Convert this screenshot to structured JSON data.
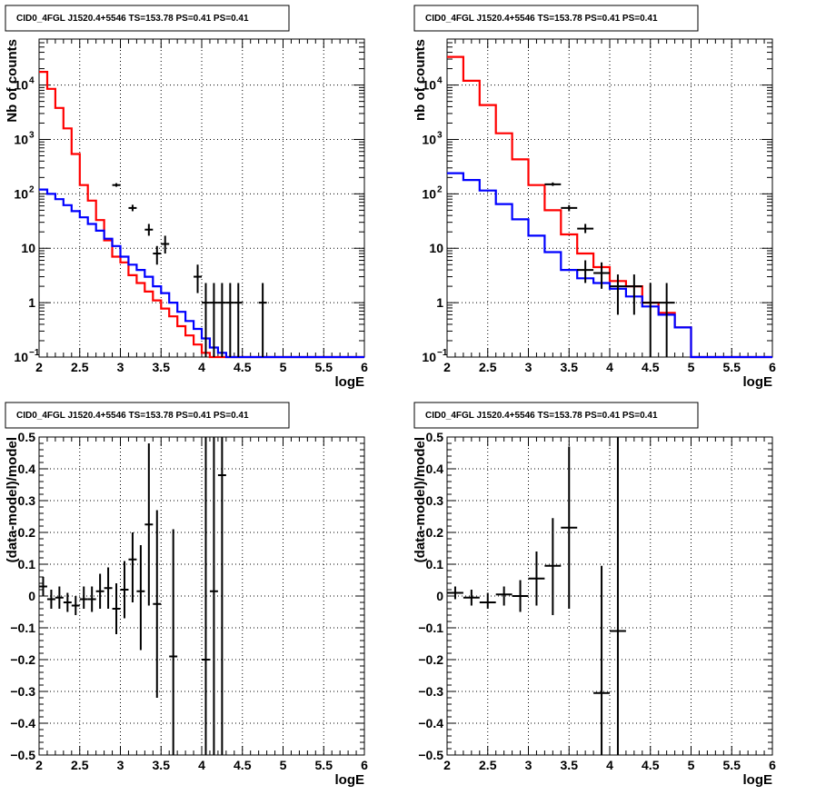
{
  "chart_data": [
    {
      "type": "step",
      "title": "CID0_4FGL J1520.4+5546 TS=153.78 PS=0.41 PS=0.41",
      "xlabel": "logE",
      "ylabel": "Nb of counts",
      "xlim": [
        2,
        6
      ],
      "ylim": [
        0.1,
        70000
      ],
      "yscale": "log",
      "grid": true,
      "x_ticks": [
        "2",
        "2.5",
        "3",
        "3.5",
        "4",
        "4.5",
        "5",
        "5.5",
        "6"
      ],
      "y_ticks": [
        {
          "v": 0.1,
          "label": "10",
          "sup": "−1"
        },
        {
          "v": 1,
          "label": "1",
          "sup": ""
        },
        {
          "v": 10,
          "label": "10",
          "sup": ""
        },
        {
          "v": 100,
          "label": "10",
          "sup": "2"
        },
        {
          "v": 1000,
          "label": "10",
          "sup": "3"
        },
        {
          "v": 10000,
          "label": "10",
          "sup": "4"
        }
      ],
      "bin_width": 0.1,
      "bin_start": 2.0,
      "series": [
        {
          "color": "#ff0000",
          "values": [
            17500,
            8500,
            3800,
            1600,
            540,
            145,
            75,
            33,
            14,
            7,
            5.5,
            3.2,
            2.3,
            1.6,
            1.1,
            0.78,
            0.56,
            0.37,
            0.25,
            0.17,
            0.12,
            0.1,
            0.1,
            0.1,
            0.1,
            0.1,
            0.1,
            0.1,
            0.1,
            0.1,
            0.1,
            0.1,
            0.1,
            0.1,
            0.1,
            0.1,
            0.1,
            0.1,
            0.1,
            0.1
          ]
        },
        {
          "color": "#0000ff",
          "values": [
            120,
            100,
            80,
            62,
            48,
            37,
            28,
            21,
            15,
            11,
            7,
            5,
            4,
            3,
            2,
            1.5,
            1.0,
            0.68,
            0.46,
            0.33,
            0.22,
            0.15,
            0.12,
            0.1,
            0.1,
            0.1,
            0.1,
            0.1,
            0.1,
            0.1,
            0.1,
            0.1,
            0.1,
            0.1,
            0.1,
            0.1,
            0.1,
            0.1,
            0.1,
            0.1
          ]
        }
      ],
      "points": [
        {
          "x": 2.95,
          "y": 145,
          "lo": 135,
          "hi": 157,
          "xerr": 0.05
        },
        {
          "x": 3.15,
          "y": 55,
          "lo": 48,
          "hi": 63,
          "xerr": 0.05
        },
        {
          "x": 3.35,
          "y": 22,
          "lo": 17,
          "hi": 28,
          "xerr": 0.05
        },
        {
          "x": 3.45,
          "y": 8,
          "lo": 5,
          "hi": 11,
          "xerr": 0.05
        },
        {
          "x": 3.55,
          "y": 12,
          "lo": 8,
          "hi": 17,
          "xerr": 0.05
        },
        {
          "x": 3.95,
          "y": 3,
          "lo": 1.5,
          "hi": 5,
          "xerr": 0.05
        },
        {
          "x": 4.05,
          "y": 1,
          "lo": 0.1,
          "hi": 2.3,
          "xerr": 0.05
        },
        {
          "x": 4.15,
          "y": 1,
          "lo": 0.1,
          "hi": 2.3,
          "xerr": 0.05
        },
        {
          "x": 4.25,
          "y": 1,
          "lo": 0.1,
          "hi": 2.3,
          "xerr": 0.05
        },
        {
          "x": 4.35,
          "y": 1,
          "lo": 0.1,
          "hi": 2.3,
          "xerr": 0.05
        },
        {
          "x": 4.45,
          "y": 1,
          "lo": 0.1,
          "hi": 2.3,
          "xerr": 0.05
        },
        {
          "x": 4.75,
          "y": 1,
          "lo": 0.1,
          "hi": 2.3,
          "xerr": 0.05
        }
      ]
    },
    {
      "type": "step",
      "title": "CID0_4FGL J1520.4+5546 TS=153.78 PS=0.41 PS=0.41",
      "xlabel": "logE",
      "ylabel": "nb of counts",
      "xlim": [
        2,
        6
      ],
      "ylim": [
        0.1,
        70000
      ],
      "yscale": "log",
      "grid": true,
      "x_ticks": [
        "2",
        "2.5",
        "3",
        "3.5",
        "4",
        "4.5",
        "5",
        "5.5",
        "6"
      ],
      "y_ticks": [
        {
          "v": 0.1,
          "label": "10",
          "sup": "−1"
        },
        {
          "v": 1,
          "label": "1",
          "sup": ""
        },
        {
          "v": 10,
          "label": "10",
          "sup": ""
        },
        {
          "v": 100,
          "label": "10",
          "sup": "2"
        },
        {
          "v": 1000,
          "label": "10",
          "sup": "3"
        },
        {
          "v": 10000,
          "label": "10",
          "sup": "4"
        }
      ],
      "bin_width": 0.2,
      "bin_start": 2.0,
      "series": [
        {
          "color": "#ff0000",
          "values": [
            33000,
            12000,
            4300,
            1300,
            430,
            145,
            50,
            18,
            8,
            4.5,
            2.5,
            2.0,
            1.0,
            0.65,
            0.35,
            0.1,
            0.1,
            0.1,
            0.1,
            0.1
          ]
        },
        {
          "color": "#0000ff",
          "values": [
            240,
            180,
            115,
            65,
            34,
            17,
            8.5,
            4,
            2.8,
            2.3,
            1.8,
            1.3,
            0.85,
            0.6,
            0.35,
            0.1,
            0.1,
            0.1,
            0.1,
            0.1
          ]
        }
      ],
      "points": [
        {
          "x": 3.3,
          "y": 150,
          "lo": 140,
          "hi": 162,
          "xerr": 0.1
        },
        {
          "x": 3.5,
          "y": 55,
          "lo": 48,
          "hi": 62,
          "xerr": 0.1
        },
        {
          "x": 3.7,
          "y": 23,
          "lo": 19,
          "hi": 28,
          "xerr": 0.1
        },
        {
          "x": 3.7,
          "y": 4,
          "lo": 2.3,
          "hi": 6,
          "xerr": 0.1
        },
        {
          "x": 3.9,
          "y": 3.5,
          "lo": 1.8,
          "hi": 5.5,
          "xerr": 0.1
        },
        {
          "x": 4.1,
          "y": 2.0,
          "lo": 0.6,
          "hi": 3.3,
          "xerr": 0.1
        },
        {
          "x": 4.3,
          "y": 2.0,
          "lo": 0.6,
          "hi": 3.3,
          "xerr": 0.1
        },
        {
          "x": 4.5,
          "y": 1,
          "lo": 0.1,
          "hi": 2.3,
          "xerr": 0.1
        },
        {
          "x": 4.7,
          "y": 1,
          "lo": 0.1,
          "hi": 2.3,
          "xerr": 0.1
        }
      ]
    },
    {
      "type": "scatter",
      "title": "CID0_4FGL J1520.4+5546 TS=153.78 PS=0.41 PS=0.41",
      "xlabel": "logE",
      "ylabel": "(data-model)/model",
      "xlim": [
        2,
        6
      ],
      "ylim": [
        -0.5,
        0.5
      ],
      "yscale": "linear",
      "grid": true,
      "x_ticks": [
        "2",
        "2.5",
        "3",
        "3.5",
        "4",
        "4.5",
        "5",
        "5.5",
        "6"
      ],
      "y_ticks": [
        {
          "v": -0.5,
          "label": "−0.5"
        },
        {
          "v": -0.4,
          "label": "−0.4"
        },
        {
          "v": -0.3,
          "label": "−0.3"
        },
        {
          "v": -0.2,
          "label": "−0.2"
        },
        {
          "v": -0.1,
          "label": "−0.1"
        },
        {
          "v": 0,
          "label": "0"
        },
        {
          "v": 0.1,
          "label": "0.1"
        },
        {
          "v": 0.2,
          "label": "0.2"
        },
        {
          "v": 0.3,
          "label": "0.3"
        },
        {
          "v": 0.4,
          "label": "0.4"
        },
        {
          "v": 0.5,
          "label": "0.5"
        }
      ],
      "points": [
        {
          "x": 2.05,
          "y": 0.03,
          "lo": 0.0,
          "hi": 0.06,
          "xerr": 0.05
        },
        {
          "x": 2.15,
          "y": -0.01,
          "lo": -0.04,
          "hi": 0.02,
          "xerr": 0.05
        },
        {
          "x": 2.25,
          "y": -0.005,
          "lo": -0.04,
          "hi": 0.03,
          "xerr": 0.05
        },
        {
          "x": 2.35,
          "y": -0.02,
          "lo": -0.05,
          "hi": 0.01,
          "xerr": 0.05
        },
        {
          "x": 2.45,
          "y": -0.03,
          "lo": -0.06,
          "hi": 0.0,
          "xerr": 0.05
        },
        {
          "x": 2.55,
          "y": -0.01,
          "lo": -0.04,
          "hi": 0.03,
          "xerr": 0.05
        },
        {
          "x": 2.65,
          "y": -0.01,
          "lo": -0.05,
          "hi": 0.03,
          "xerr": 0.05
        },
        {
          "x": 2.75,
          "y": 0.015,
          "lo": -0.04,
          "hi": 0.07,
          "xerr": 0.05
        },
        {
          "x": 2.85,
          "y": 0.025,
          "lo": -0.04,
          "hi": 0.09,
          "xerr": 0.05
        },
        {
          "x": 2.95,
          "y": -0.04,
          "lo": -0.12,
          "hi": 0.04,
          "xerr": 0.05
        },
        {
          "x": 3.05,
          "y": 0.02,
          "lo": -0.07,
          "hi": 0.11,
          "xerr": 0.05
        },
        {
          "x": 3.15,
          "y": 0.115,
          "lo": -0.02,
          "hi": 0.2,
          "xerr": 0.05
        },
        {
          "x": 3.25,
          "y": 0.015,
          "lo": -0.17,
          "hi": 0.16,
          "xerr": 0.05
        },
        {
          "x": 3.35,
          "y": 0.225,
          "lo": -0.03,
          "hi": 0.48,
          "xerr": 0.05
        },
        {
          "x": 3.45,
          "y": -0.025,
          "lo": -0.32,
          "hi": 0.27,
          "xerr": 0.05
        },
        {
          "x": 3.65,
          "y": -0.19,
          "lo": -0.5,
          "hi": 0.21,
          "xerr": 0.05
        },
        {
          "x": 4.05,
          "y": -0.2,
          "lo": -0.5,
          "hi": 0.5,
          "xerr": 0.05
        },
        {
          "x": 4.15,
          "y": 0.015,
          "lo": -0.5,
          "hi": 0.5,
          "xerr": 0.05
        },
        {
          "x": 4.25,
          "y": 0.38,
          "lo": -0.5,
          "hi": 0.5,
          "xerr": 0.05
        }
      ]
    },
    {
      "type": "scatter",
      "title": "CID0_4FGL J1520.4+5546 TS=153.78 PS=0.41 PS=0.41",
      "xlabel": "logE",
      "ylabel": "(data-model)/model",
      "xlim": [
        2,
        6
      ],
      "ylim": [
        -0.5,
        0.5
      ],
      "yscale": "linear",
      "grid": true,
      "x_ticks": [
        "2",
        "2.5",
        "3",
        "3.5",
        "4",
        "4.5",
        "5",
        "5.5",
        "6"
      ],
      "y_ticks": [
        {
          "v": -0.5,
          "label": "−0.5"
        },
        {
          "v": -0.4,
          "label": "−0.4"
        },
        {
          "v": -0.3,
          "label": "−0.3"
        },
        {
          "v": -0.2,
          "label": "−0.2"
        },
        {
          "v": -0.1,
          "label": "−0.1"
        },
        {
          "v": 0,
          "label": "0"
        },
        {
          "v": 0.1,
          "label": "0.1"
        },
        {
          "v": 0.2,
          "label": "0.2"
        },
        {
          "v": 0.3,
          "label": "0.3"
        },
        {
          "v": 0.4,
          "label": "0.4"
        },
        {
          "v": 0.5,
          "label": "0.5"
        }
      ],
      "points": [
        {
          "x": 2.1,
          "y": 0.01,
          "lo": -0.01,
          "hi": 0.03,
          "xerr": 0.1
        },
        {
          "x": 2.3,
          "y": -0.005,
          "lo": -0.03,
          "hi": 0.02,
          "xerr": 0.1
        },
        {
          "x": 2.5,
          "y": -0.02,
          "lo": -0.04,
          "hi": 0.01,
          "xerr": 0.1
        },
        {
          "x": 2.7,
          "y": 0.005,
          "lo": -0.03,
          "hi": 0.03,
          "xerr": 0.1
        },
        {
          "x": 2.9,
          "y": 0.0,
          "lo": -0.05,
          "hi": 0.05,
          "xerr": 0.1
        },
        {
          "x": 3.1,
          "y": 0.055,
          "lo": -0.03,
          "hi": 0.14,
          "xerr": 0.1
        },
        {
          "x": 3.3,
          "y": 0.095,
          "lo": -0.06,
          "hi": 0.245,
          "xerr": 0.1
        },
        {
          "x": 3.5,
          "y": 0.215,
          "lo": -0.04,
          "hi": 0.47,
          "xerr": 0.1
        },
        {
          "x": 3.9,
          "y": -0.305,
          "lo": -0.5,
          "hi": 0.095,
          "xerr": 0.1
        },
        {
          "x": 4.1,
          "y": -0.11,
          "lo": -0.5,
          "hi": 0.5,
          "xerr": 0.1
        }
      ]
    }
  ]
}
